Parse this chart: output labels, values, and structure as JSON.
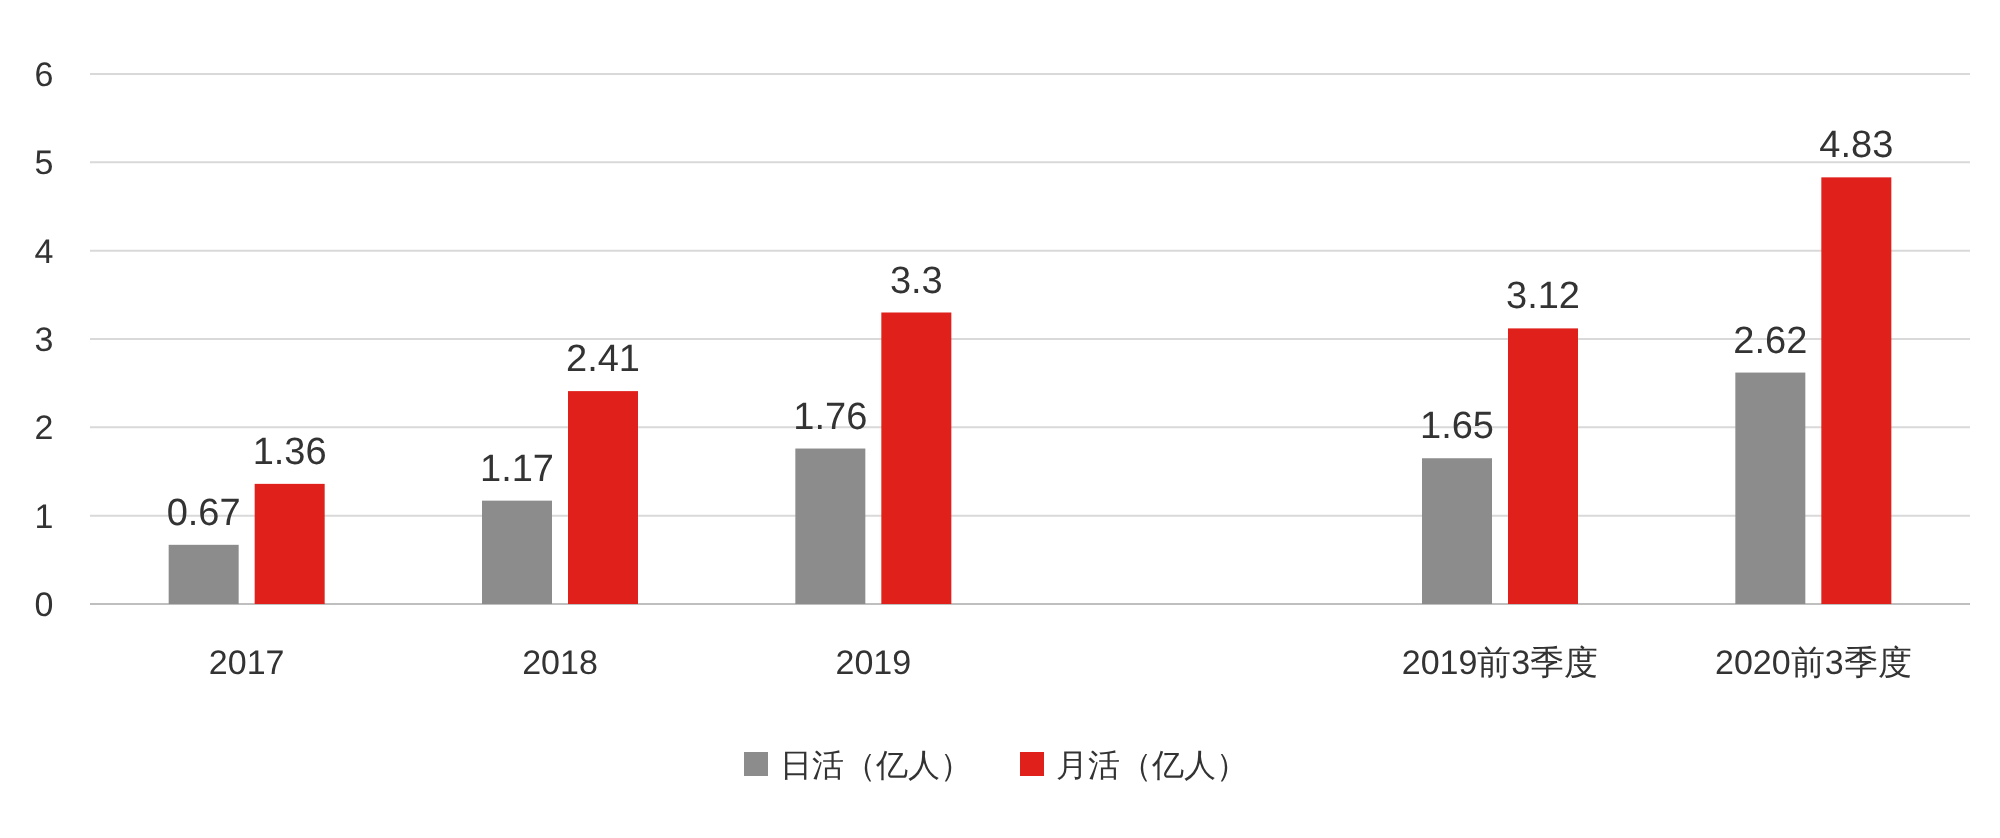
{
  "chart_data": {
    "type": "bar",
    "categories": [
      "2017",
      "2018",
      "2019",
      null,
      "2019前3季度",
      "2020前3季度"
    ],
    "series": [
      {
        "name": "日活（亿人）",
        "color": "#8c8c8c",
        "values": [
          0.67,
          1.17,
          1.76,
          null,
          1.65,
          2.62
        ]
      },
      {
        "name": "月活（亿人）",
        "color": "#e0201b",
        "values": [
          1.36,
          2.41,
          3.3,
          null,
          3.12,
          4.83
        ]
      }
    ],
    "ylim": [
      0,
      6
    ],
    "yticks": [
      0,
      1,
      2,
      3,
      4,
      5,
      6
    ],
    "grid": "y",
    "legend": "bottom",
    "data_labels": true
  }
}
